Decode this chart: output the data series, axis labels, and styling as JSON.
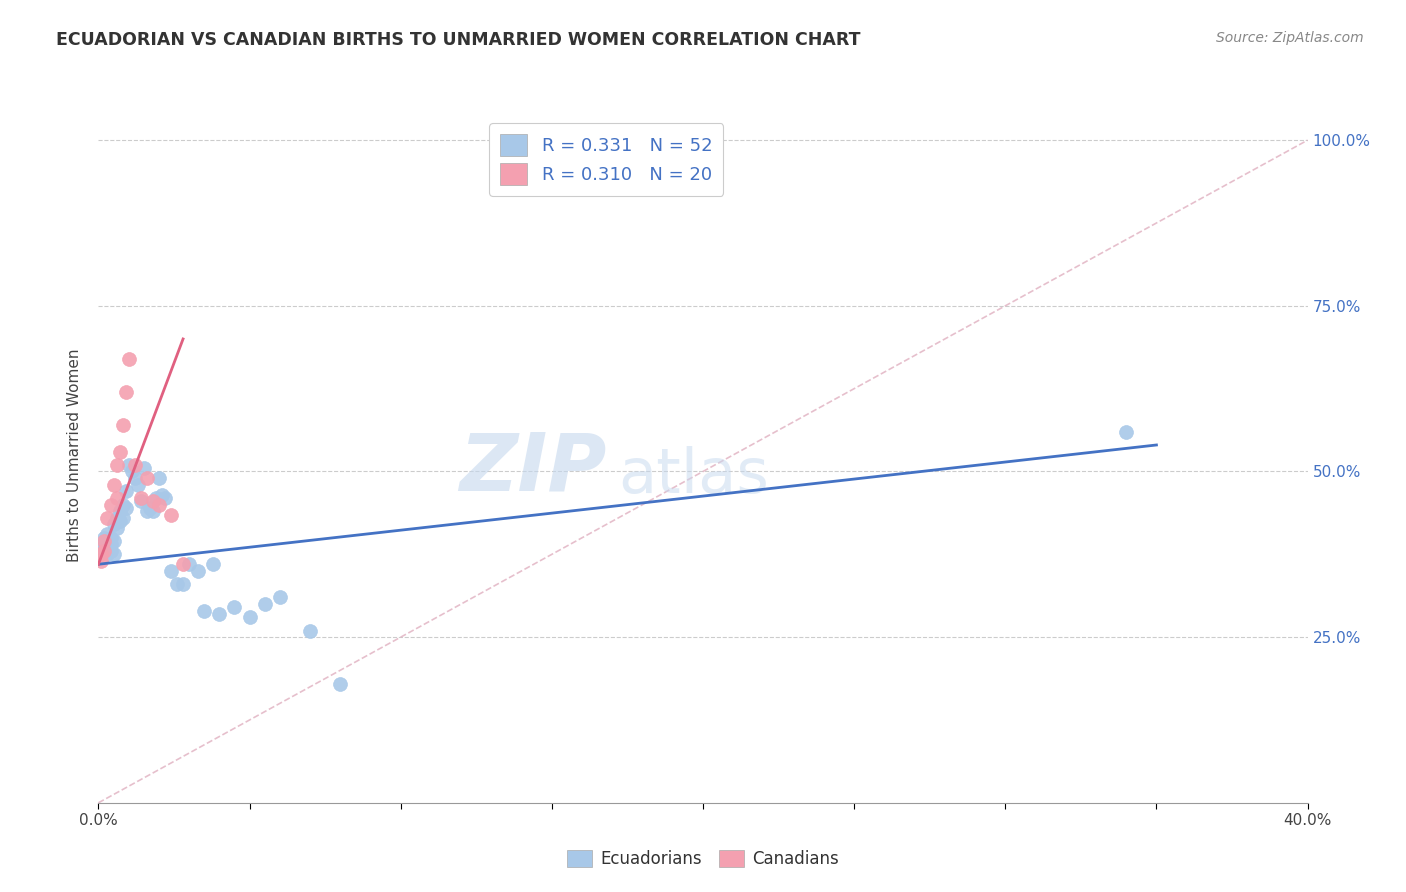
{
  "title": "ECUADORIAN VS CANADIAN BIRTHS TO UNMARRIED WOMEN CORRELATION CHART",
  "source": "Source: ZipAtlas.com",
  "ylabel": "Births to Unmarried Women",
  "legend_label_blue": "R = 0.331   N = 52",
  "legend_label_pink": "R = 0.310   N = 20",
  "legend_label_ecuadorians": "Ecuadorians",
  "legend_label_canadians": "Canadians",
  "blue_scatter_color": "#a8c8e8",
  "pink_scatter_color": "#f4a0b0",
  "blue_line_color": "#4472c4",
  "pink_line_color": "#e06080",
  "diagonal_color": "#c8c8c8",
  "background_color": "#ffffff",
  "watermark_zip": "ZIP",
  "watermark_atlas": "atlas",
  "ecuadorian_x": [
    0.001,
    0.001,
    0.002,
    0.002,
    0.002,
    0.003,
    0.003,
    0.003,
    0.003,
    0.003,
    0.004,
    0.004,
    0.004,
    0.005,
    0.005,
    0.005,
    0.006,
    0.006,
    0.007,
    0.007,
    0.008,
    0.008,
    0.009,
    0.009,
    0.01,
    0.011,
    0.012,
    0.013,
    0.014,
    0.015,
    0.016,
    0.017,
    0.018,
    0.019,
    0.02,
    0.021,
    0.022,
    0.024,
    0.026,
    0.028,
    0.03,
    0.033,
    0.035,
    0.038,
    0.04,
    0.045,
    0.05,
    0.055,
    0.06,
    0.07,
    0.08,
    0.34
  ],
  "ecuadorian_y": [
    0.385,
    0.375,
    0.38,
    0.39,
    0.4,
    0.385,
    0.395,
    0.405,
    0.385,
    0.375,
    0.39,
    0.4,
    0.38,
    0.42,
    0.395,
    0.375,
    0.43,
    0.415,
    0.44,
    0.425,
    0.45,
    0.43,
    0.47,
    0.445,
    0.51,
    0.5,
    0.49,
    0.48,
    0.455,
    0.505,
    0.44,
    0.445,
    0.44,
    0.46,
    0.49,
    0.465,
    0.46,
    0.35,
    0.33,
    0.33,
    0.36,
    0.35,
    0.29,
    0.36,
    0.285,
    0.295,
    0.28,
    0.3,
    0.31,
    0.26,
    0.18,
    0.56
  ],
  "canadian_x": [
    0.001,
    0.001,
    0.002,
    0.002,
    0.003,
    0.004,
    0.005,
    0.006,
    0.006,
    0.007,
    0.008,
    0.009,
    0.01,
    0.012,
    0.014,
    0.016,
    0.018,
    0.02,
    0.024,
    0.028
  ],
  "canadian_y": [
    0.375,
    0.365,
    0.395,
    0.38,
    0.43,
    0.45,
    0.48,
    0.51,
    0.46,
    0.53,
    0.57,
    0.62,
    0.67,
    0.51,
    0.46,
    0.49,
    0.455,
    0.45,
    0.435,
    0.36
  ],
  "ecu_line_x0": 0.0,
  "ecu_line_x1": 0.35,
  "ecu_line_y0": 0.36,
  "ecu_line_y1": 0.54,
  "can_line_x0": 0.0,
  "can_line_x1": 0.028,
  "can_line_y0": 0.36,
  "can_line_y1": 0.7,
  "xlim": [
    0.0,
    0.4
  ],
  "ylim": [
    0.0,
    1.05
  ],
  "ytick_vals": [
    0.25,
    0.5,
    0.75,
    1.0
  ],
  "ytick_labels": [
    "25.0%",
    "50.0%",
    "75.0%",
    "100.0%"
  ],
  "xtick_vals": [
    0.0,
    0.05,
    0.1,
    0.15,
    0.2,
    0.25,
    0.3,
    0.35,
    0.4
  ],
  "xtick_labels": [
    "0.0%",
    "",
    "",
    "",
    "",
    "",
    "",
    "",
    "40.0%"
  ]
}
